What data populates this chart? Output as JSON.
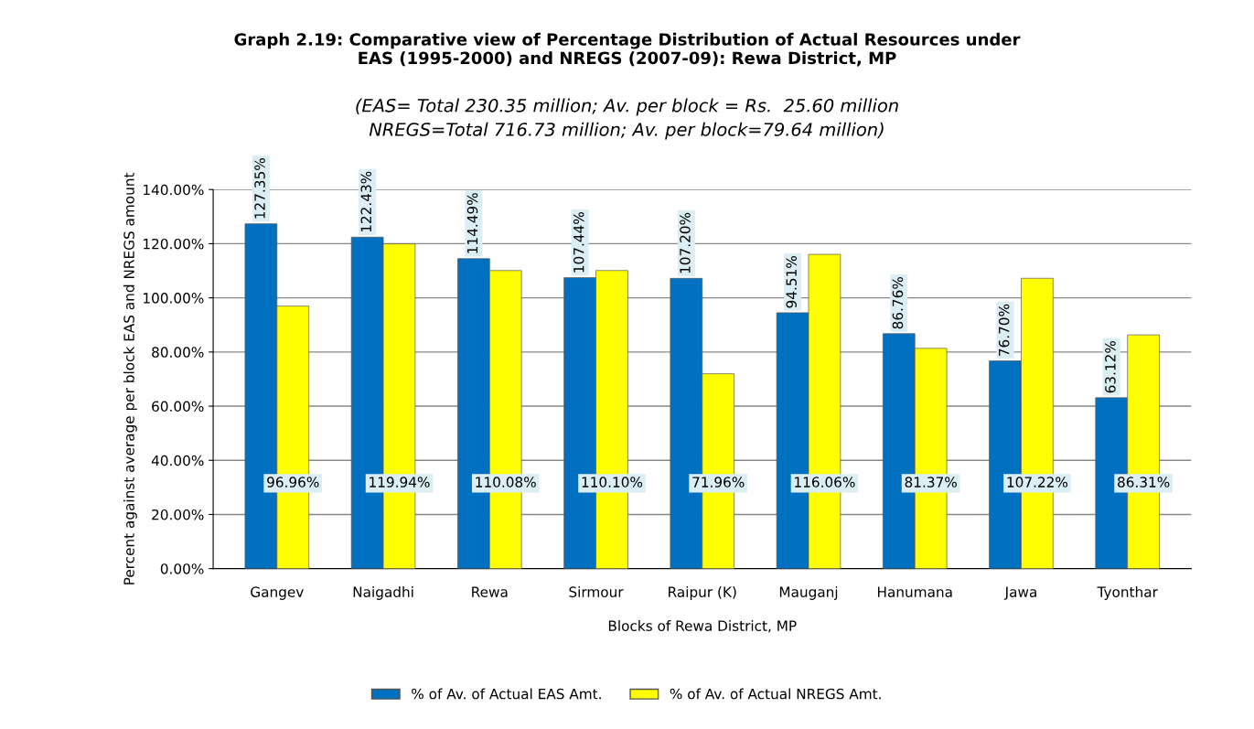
{
  "chart_data": {
    "type": "bar",
    "title": "Graph 2.19: Comparative view of Percentage Distribution of Actual Resources under\nEAS (1995-2000) and NREGS (2007-09): Rewa District, MP",
    "subtitle": "(EAS= Total 230.35 million; Av. per block = Rs.  25.60 million\nNREGS=Total 716.73 million; Av. per block=79.64 million)",
    "xlabel": "Blocks of Rewa District, MP",
    "ylabel": "Percent against average per block EAS and NREGS amount",
    "categories": [
      "Gangev",
      "Naigadhi",
      "Rewa",
      "Sirmour",
      "Raipur (K)",
      "Mauganj",
      "Hanumana",
      "Jawa",
      "Tyonthar"
    ],
    "series": [
      {
        "name": "% of Av. of Actual EAS Amt.",
        "color": "#0070c0",
        "values": [
          127.35,
          122.43,
          114.49,
          107.44,
          107.2,
          94.51,
          86.76,
          76.7,
          63.12
        ],
        "value_labels": [
          "127.35%",
          "122.43%",
          "114.49%",
          "107.44%",
          "107.20%",
          "94.51%",
          "86.76%",
          "76.70%",
          "63.12%"
        ]
      },
      {
        "name": "% of Av. of Actual NREGS Amt.",
        "color": "#ffff00",
        "values": [
          96.96,
          119.94,
          110.08,
          110.1,
          71.96,
          116.06,
          81.37,
          107.22,
          86.31
        ],
        "value_labels": [
          "96.96%",
          "119.94%",
          "110.08%",
          "110.10%",
          "71.96%",
          "116.06%",
          "81.37%",
          "107.22%",
          "86.31%"
        ]
      }
    ],
    "ylim": [
      0,
      140
    ],
    "yticks": [
      {
        "value": 0,
        "label": "0.00%"
      },
      {
        "value": 20,
        "label": "20.00%"
      },
      {
        "value": 40,
        "label": "40.00%"
      },
      {
        "value": 60,
        "label": "60.00%"
      },
      {
        "value": 80,
        "label": "80.00%"
      },
      {
        "value": 100,
        "label": "100.00%"
      },
      {
        "value": 120,
        "label": "120.00%"
      },
      {
        "value": 140,
        "label": "140.00%"
      }
    ],
    "grid": "y",
    "legend": "bottom"
  }
}
